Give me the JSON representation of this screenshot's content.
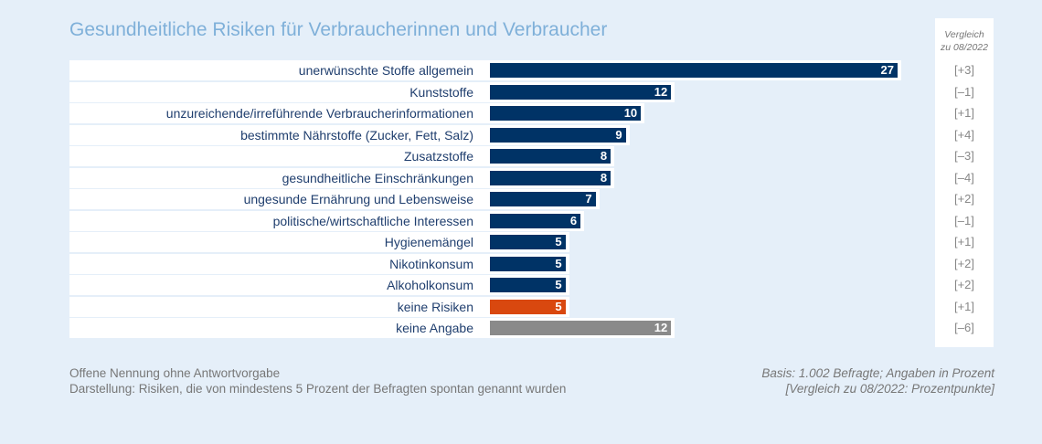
{
  "chart_data": {
    "type": "bar",
    "title": "Gesundheitliche Risiken für Verbraucherinnen und Verbraucher",
    "comparison_header": [
      "Vergleich",
      "zu 08/2022"
    ],
    "categories": [
      "unerwünschte Stoffe allgemein",
      "Kunststoffe",
      "unzureichende/irreführende Verbraucherinformationen",
      "bestimmte Nährstoffe (Zucker, Fett, Salz)",
      "Zusatzstoffe",
      "gesundheitliche Einschränkungen",
      "ungesunde Ernährung und Lebensweise",
      "politische/wirtschaftliche Interessen",
      "Hygienemängel",
      "Nikotinkonsum",
      "Alkoholkonsum",
      "keine Risiken",
      "keine Angabe"
    ],
    "values": [
      27,
      12,
      10,
      9,
      8,
      8,
      7,
      6,
      5,
      5,
      5,
      5,
      12
    ],
    "changes": [
      "[+3]",
      "[–1]",
      "[+1]",
      "[+4]",
      "[–3]",
      "[–4]",
      "[+2]",
      "[–1]",
      "[+1]",
      "[+2]",
      "[+2]",
      "[+1]",
      "[–6]"
    ],
    "colors": [
      "#003366",
      "#003366",
      "#003366",
      "#003366",
      "#003366",
      "#003366",
      "#003366",
      "#003366",
      "#003366",
      "#003366",
      "#003366",
      "#d9480f",
      "#8a8a8a"
    ],
    "xlim": [
      0,
      27
    ]
  },
  "footer": {
    "left": [
      "Offene Nennung ohne Antwortvorgabe",
      "Darstellung: Risiken, die von mindestens 5 Prozent der Befragten spontan genannt wurden"
    ],
    "right": [
      "Basis: 1.002 Befragte; Angaben in Prozent",
      "[Vergleich zu 08/2022: Prozentpunkte]"
    ]
  }
}
